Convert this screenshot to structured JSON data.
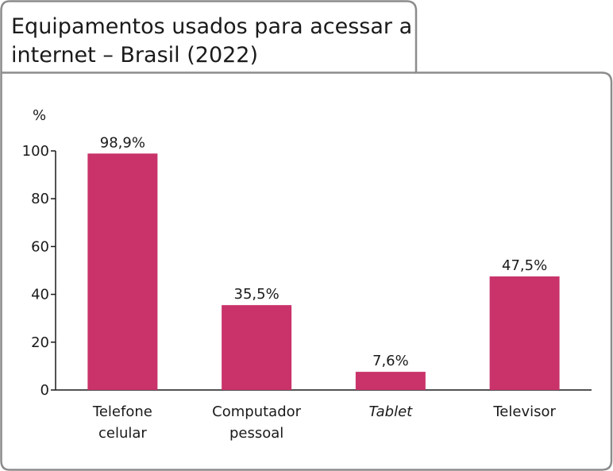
{
  "chart_data": {
    "type": "bar",
    "title_lines": [
      "Equipamentos usados para acessar a",
      "internet – Brasil (2022)"
    ],
    "ylabel": "%",
    "ylim": [
      0,
      100
    ],
    "yticks": [
      0,
      20,
      40,
      60,
      80,
      100
    ],
    "grid": false,
    "categories": [
      {
        "lines": [
          "Telefone",
          "celular"
        ],
        "italic": false
      },
      {
        "lines": [
          "Computador",
          "pessoal"
        ],
        "italic": false
      },
      {
        "lines": [
          "Tablet"
        ],
        "italic": true
      },
      {
        "lines": [
          "Televisor"
        ],
        "italic": false
      }
    ],
    "values": [
      98.9,
      35.5,
      7.6,
      47.5
    ],
    "value_labels": [
      "98,9%",
      "35,5%",
      "7,6%",
      "47,5%"
    ],
    "colors": {
      "bar": "#c9336a",
      "frame": "#8c8c8c"
    }
  }
}
